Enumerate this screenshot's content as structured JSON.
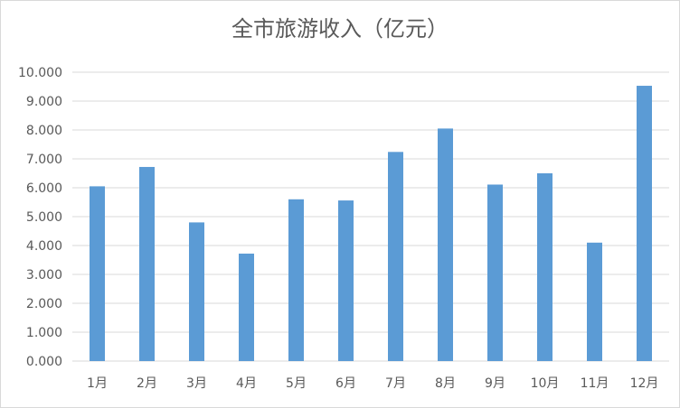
{
  "chart_data": {
    "type": "bar",
    "title": "全市旅游收入（亿元）",
    "categories": [
      "1月",
      "2月",
      "3月",
      "4月",
      "5月",
      "6月",
      "7月",
      "8月",
      "9月",
      "10月",
      "11月",
      "12月"
    ],
    "values": [
      6.05,
      6.72,
      4.8,
      3.72,
      5.6,
      5.56,
      7.24,
      8.05,
      6.11,
      6.5,
      4.1,
      9.53
    ],
    "yticks": [
      "0.000",
      "1.000",
      "2.000",
      "3.000",
      "4.000",
      "5.000",
      "6.000",
      "7.000",
      "8.000",
      "9.000",
      "10.000"
    ],
    "ylim": [
      0,
      10
    ],
    "grid": true,
    "legend": "none",
    "bar_color": "#5b9bd5"
  }
}
